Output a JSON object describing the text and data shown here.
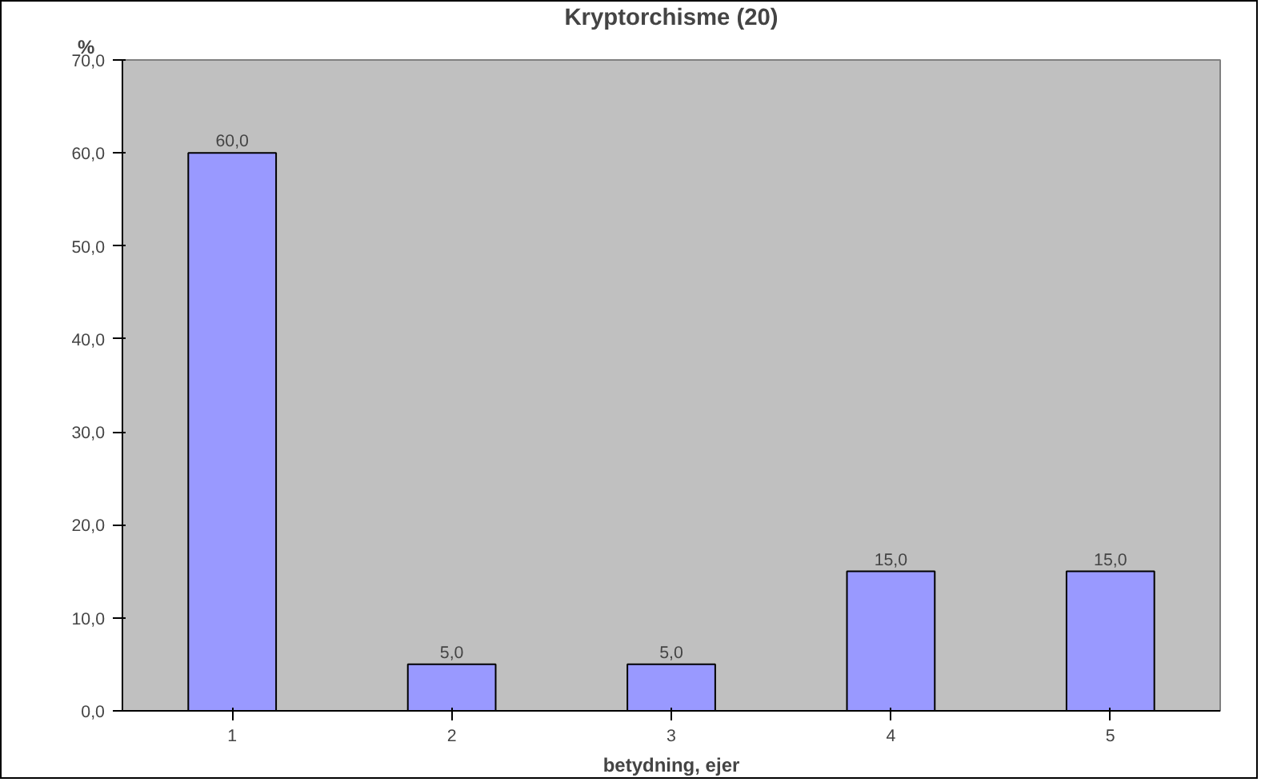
{
  "chart_data": {
    "type": "bar",
    "title": "Kryptorchisme (20)",
    "xlabel": "betydning, ejer",
    "ylabel": "%",
    "categories": [
      "1",
      "2",
      "3",
      "4",
      "5"
    ],
    "values": [
      60.0,
      5.0,
      5.0,
      15.0,
      15.0
    ],
    "value_labels": [
      "60,0",
      "5,0",
      "5,0",
      "15,0",
      "15,0"
    ],
    "color": "#9999ff",
    "ylim": [
      0,
      70
    ],
    "yticks": [
      {
        "value": 0,
        "label": "0,0"
      },
      {
        "value": 10,
        "label": "10,0"
      },
      {
        "value": 20,
        "label": "20,0"
      },
      {
        "value": 30,
        "label": "30,0"
      },
      {
        "value": 40,
        "label": "40,0"
      },
      {
        "value": 50,
        "label": "50,0"
      },
      {
        "value": 60,
        "label": "60,0"
      },
      {
        "value": 70,
        "label": "70,0"
      }
    ],
    "grid": false
  }
}
